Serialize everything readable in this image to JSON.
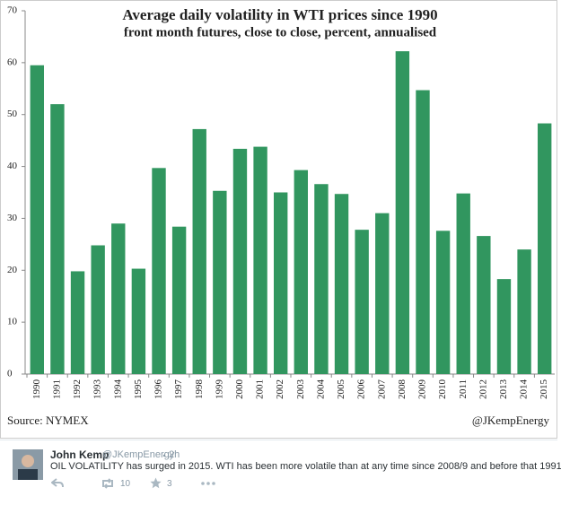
{
  "chart_data": {
    "type": "bar",
    "title": "Average daily volatility in WTI prices since 1990",
    "subtitle": "front month futures, close to close, percent, annualised",
    "source": "Source: NYMEX",
    "credit": "@JKempEnergy",
    "categories": [
      "1990",
      "1991",
      "1992",
      "1993",
      "1994",
      "1995",
      "1996",
      "1997",
      "1998",
      "1999",
      "2000",
      "2001",
      "2002",
      "2003",
      "2004",
      "2005",
      "2006",
      "2007",
      "2008",
      "2009",
      "2010",
      "2011",
      "2012",
      "2013",
      "2014",
      "2015"
    ],
    "values": [
      59.5,
      52,
      19.8,
      24.8,
      29,
      20.3,
      39.7,
      28.4,
      47.2,
      35.3,
      43.4,
      43.8,
      35,
      39.3,
      36.6,
      34.7,
      27.8,
      31,
      62.2,
      54.7,
      27.6,
      34.8,
      26.6,
      18.3,
      24,
      48.3
    ],
    "color": "#31965f",
    "ylim": [
      0,
      70
    ],
    "yticks": [
      0,
      10,
      20,
      30,
      40,
      50,
      60,
      70
    ],
    "grid": false
  },
  "tweet": {
    "name": "John Kemp",
    "handle": "@JKempEnergy",
    "time": "2h",
    "text": "OIL VOLATILITY has surged in 2015. WTI has been more volatile than at any time since 2008/9 and before that 1991:",
    "retweets": 10,
    "favorites": 3
  }
}
